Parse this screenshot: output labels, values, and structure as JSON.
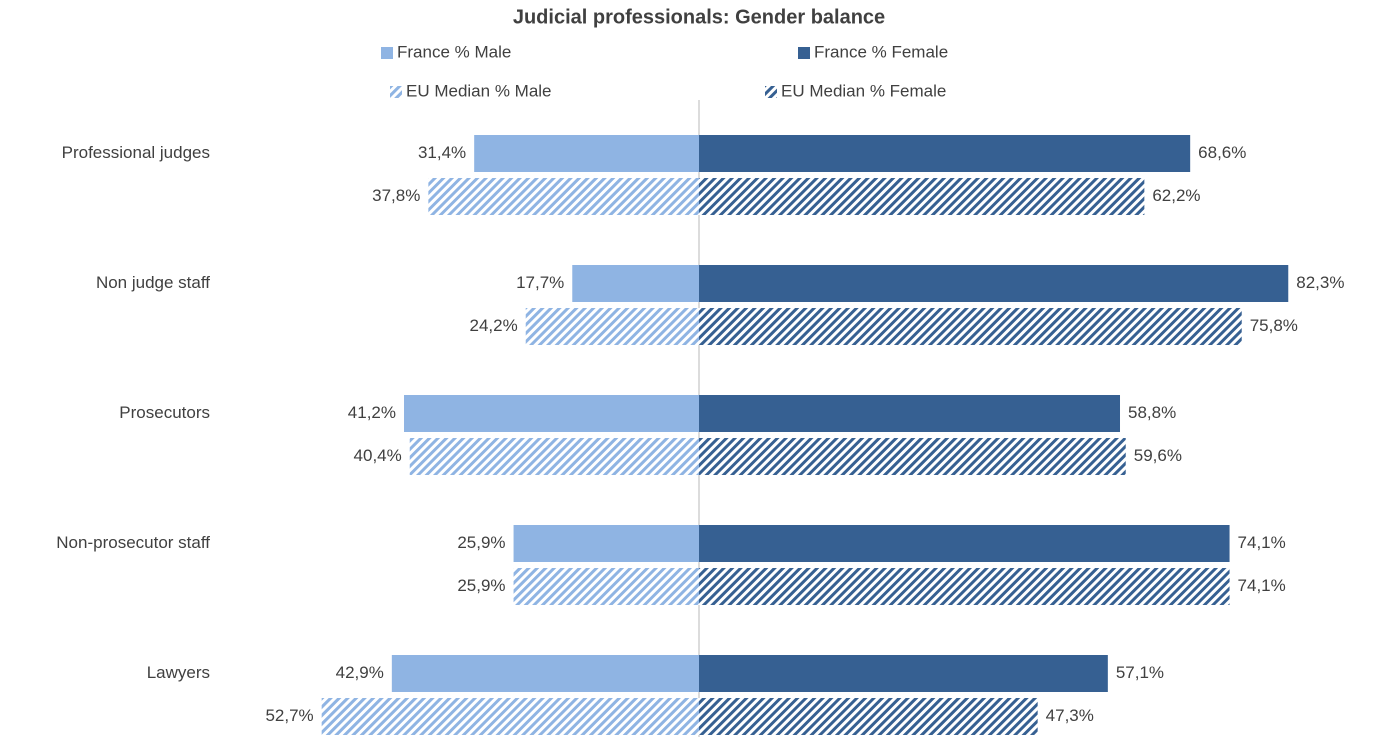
{
  "chart_data": {
    "type": "diverging_bar",
    "title": "Judicial professionals: Gender balance",
    "categories": [
      "Professional judges",
      "Non judge staff",
      "Prosecutors",
      "Non-prosecutor staff",
      "Lawyers"
    ],
    "series": [
      {
        "name": "France % Male",
        "color": "#8fb4e3",
        "pattern": "solid",
        "values": [
          31.4,
          17.7,
          41.2,
          25.9,
          42.9
        ],
        "value_labels": [
          "31,4%",
          "17,7%",
          "41,2%",
          "25,9%",
          "42,9%"
        ]
      },
      {
        "name": "France % Female",
        "color": "#366092",
        "pattern": "solid",
        "values": [
          68.6,
          82.3,
          58.8,
          74.1,
          57.1
        ],
        "value_labels": [
          "68,6%",
          "82,3%",
          "58,8%",
          "74,1%",
          "57,1%"
        ]
      },
      {
        "name": "EU Median  % Male",
        "color": "#8fb4e3",
        "pattern": "hatch",
        "values": [
          37.8,
          24.2,
          40.4,
          25.9,
          52.7
        ],
        "value_labels": [
          "37,8%",
          "24,2%",
          "40,4%",
          "25,9%",
          "52,7%"
        ]
      },
      {
        "name": "EU Median  % Female",
        "color": "#366092",
        "pattern": "hatch",
        "values": [
          62.2,
          75.8,
          59.6,
          74.1,
          47.3
        ],
        "value_labels": [
          "62,2%",
          "75,8%",
          "59,6%",
          "74,1%",
          "47,3%"
        ]
      }
    ]
  }
}
